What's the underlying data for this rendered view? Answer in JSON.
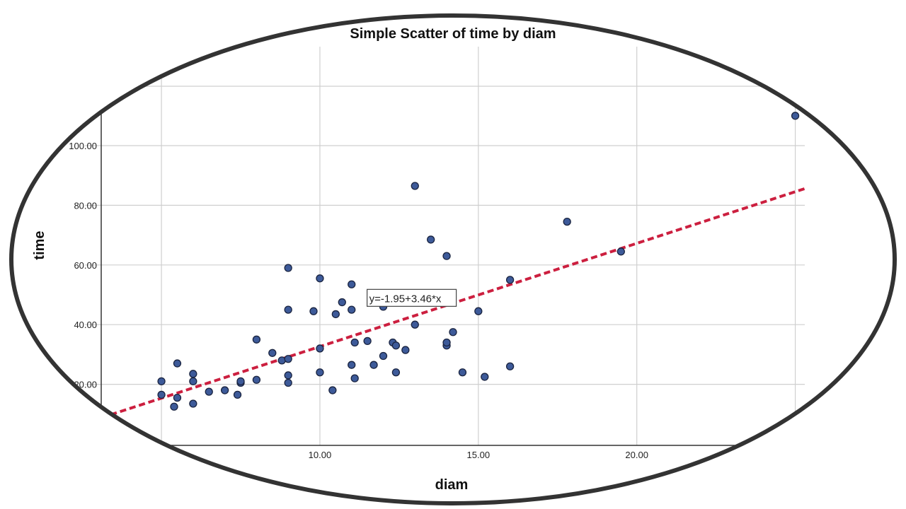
{
  "chart_data": {
    "type": "scatter",
    "title": "Simple Scatter of time by diam",
    "xlabel": "diam",
    "ylabel": "time",
    "xlim": [
      3.1,
      25.3
    ],
    "ylim": [
      0,
      115
    ],
    "x_ticks": [
      10,
      15,
      20
    ],
    "x_tick_labels": [
      "10.00",
      "15.00",
      "20.00"
    ],
    "y_ticks": [
      20,
      40,
      60,
      80,
      100
    ],
    "y_tick_labels": [
      "20.00",
      "40.00",
      "60.00",
      "80.00",
      "100.00"
    ],
    "grid": true,
    "colors": {
      "points": "#3d5a99",
      "point_edge": "#1a2440",
      "fit_line": "#cc1f3f",
      "grid": "#cfcfcf",
      "frame": "#333333"
    },
    "points": [
      [
        5,
        21
      ],
      [
        5,
        16.5
      ],
      [
        5.4,
        12.5
      ],
      [
        5.5,
        15.5
      ],
      [
        5.5,
        27
      ],
      [
        6,
        13.5
      ],
      [
        6,
        21
      ],
      [
        6,
        23.5
      ],
      [
        6.5,
        17.5
      ],
      [
        7,
        18
      ],
      [
        7.4,
        16.5
      ],
      [
        7.5,
        20.5
      ],
      [
        7.5,
        21
      ],
      [
        8,
        21.5
      ],
      [
        8,
        35
      ],
      [
        8.5,
        30.5
      ],
      [
        8.8,
        28
      ],
      [
        9,
        20.5
      ],
      [
        9,
        23
      ],
      [
        9,
        28.5
      ],
      [
        9,
        45
      ],
      [
        9,
        59
      ],
      [
        9.8,
        44.5
      ],
      [
        10,
        24
      ],
      [
        10,
        32
      ],
      [
        10,
        55.5
      ],
      [
        10.4,
        18
      ],
      [
        10.5,
        43.5
      ],
      [
        10.7,
        47.5
      ],
      [
        11,
        26.5
      ],
      [
        11,
        45
      ],
      [
        11,
        53.5
      ],
      [
        11.1,
        22
      ],
      [
        11.1,
        34
      ],
      [
        11.5,
        34.5
      ],
      [
        11.7,
        26.5
      ],
      [
        12,
        29.5
      ],
      [
        12,
        46
      ],
      [
        12.3,
        34
      ],
      [
        12.4,
        24
      ],
      [
        12.4,
        33
      ],
      [
        12.4,
        48.5
      ],
      [
        12.7,
        31.5
      ],
      [
        13,
        40
      ],
      [
        13,
        86.5
      ],
      [
        13.5,
        68.5
      ],
      [
        14,
        33
      ],
      [
        14,
        34
      ],
      [
        14,
        63
      ],
      [
        14.2,
        37.5
      ],
      [
        14.5,
        24
      ],
      [
        15,
        44.5
      ],
      [
        15.2,
        22.5
      ],
      [
        16,
        26
      ],
      [
        16,
        55
      ],
      [
        17.8,
        74.5
      ],
      [
        19.5,
        64.5
      ],
      [
        25,
        110
      ]
    ],
    "fit_line": {
      "intercept": -1.95,
      "slope": 3.46,
      "label": "y=-1.95+3.46*x",
      "label_anchor": [
        13.7,
        48.5
      ]
    }
  }
}
